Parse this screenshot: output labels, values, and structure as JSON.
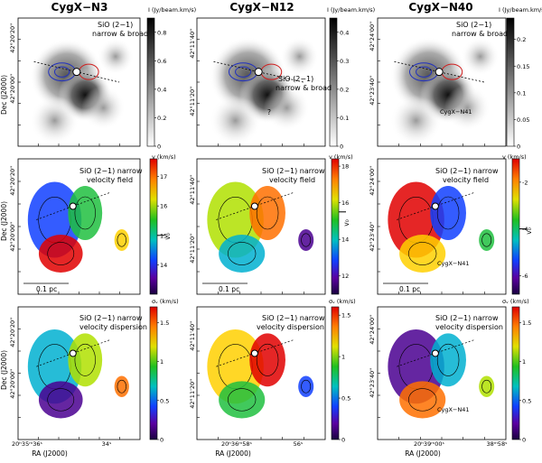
{
  "figure": {
    "columns": [
      {
        "title": "CygX−N3",
        "ra_ticks": [
          "20ʰ35ᵐ36ˢ",
          "34ˢ"
        ],
        "dec_ticks": [
          "42°20'20''",
          "42°20'00''"
        ]
      },
      {
        "title": "CygX−N12",
        "ra_ticks": [
          "20ʰ36ᵐ58ˢ",
          "56ˢ"
        ],
        "dec_ticks": [
          "42°11'40''",
          "42°11'20''"
        ]
      },
      {
        "title": "CygX−N40",
        "ra_ticks": [
          "20ʰ39ᵐ00ˢ",
          "38ᵐ58ˢ"
        ],
        "dec_ticks": [
          "42°24'00''",
          "42°23'40''"
        ]
      }
    ],
    "axis_labels": {
      "ra": "RA (J2000)",
      "dec": "Dec (J2000)"
    },
    "row_labels": [
      [
        "SiO (2−1)",
        "narrow & broad"
      ],
      [
        "SiO (2−1) narrow",
        "velocity field"
      ],
      [
        "SiO (2−1) narrow",
        "velocity dispersion"
      ]
    ],
    "extra_labels": {
      "source": "CygX−N41",
      "scale": "0.1 pc",
      "v0": "v₀",
      "question": "?"
    },
    "cbar_units": {
      "intensity": "I (Jy/beam.km/s)",
      "velocity": "v (km/s)",
      "dispersion": "σᵥ (km/s)"
    }
  },
  "chart_data": [
    {
      "type": "heatmap",
      "panel": "N3 integrated intensity",
      "title": "CygX−N3",
      "colorbar": {
        "label": "I (Jy/beam.km/s)",
        "ticks": [
          0,
          0.2,
          0.4,
          0.6,
          0.8
        ],
        "range": [
          0,
          0.9
        ]
      }
    },
    {
      "type": "heatmap",
      "panel": "N12 integrated intensity",
      "title": "CygX−N12",
      "colorbar": {
        "label": "I (Jy/beam.km/s)",
        "ticks": [
          0,
          0.1,
          0.2,
          0.3,
          0.4
        ],
        "range": [
          0,
          0.45
        ]
      }
    },
    {
      "type": "heatmap",
      "panel": "N40 integrated intensity",
      "title": "CygX−N40",
      "colorbar": {
        "label": "I (Jy/beam.km/s)",
        "ticks": [
          0,
          0.05,
          0.1,
          0.15,
          0.2
        ],
        "range": [
          0,
          0.24
        ]
      }
    },
    {
      "type": "heatmap",
      "panel": "N3 velocity field",
      "colorbar": {
        "label": "v (km/s)",
        "ticks": [
          14,
          15,
          16,
          17
        ],
        "range": [
          13,
          17.6
        ],
        "v0": 15
      }
    },
    {
      "type": "heatmap",
      "panel": "N12 velocity field",
      "colorbar": {
        "label": "v (km/s)",
        "ticks": [
          12,
          14,
          16,
          18
        ],
        "range": [
          11,
          18.4
        ],
        "v0": 15.5
      }
    },
    {
      "type": "heatmap",
      "panel": "N40 velocity field",
      "colorbar": {
        "label": "v (km/s)",
        "ticks": [
          -6,
          -4,
          -2
        ],
        "range": [
          -6.8,
          -1
        ],
        "v0": -4
      }
    },
    {
      "type": "heatmap",
      "panel": "N3 velocity dispersion",
      "colorbar": {
        "label": "σᵥ (km/s)",
        "ticks": [
          0,
          0.5,
          1,
          1.5
        ],
        "range": [
          0,
          1.7
        ]
      }
    },
    {
      "type": "heatmap",
      "panel": "N12 velocity dispersion",
      "colorbar": {
        "label": "σᵥ (km/s)",
        "ticks": [
          0,
          0.5,
          1,
          1.5
        ],
        "range": [
          0,
          1.6
        ]
      }
    },
    {
      "type": "heatmap",
      "panel": "N40 velocity dispersion",
      "colorbar": {
        "label": "σᵥ (km/s)",
        "ticks": [
          0,
          0.5,
          1,
          1.5
        ],
        "range": [
          0,
          1.7
        ]
      }
    }
  ]
}
